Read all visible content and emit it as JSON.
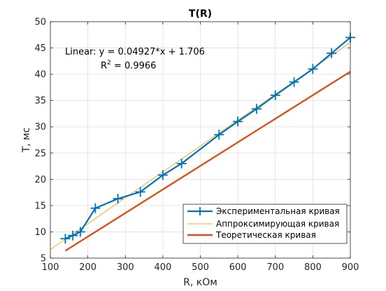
{
  "chart_data": {
    "type": "line",
    "title": "T(R)",
    "xlabel": "R, кОм",
    "ylabel": "T, мс",
    "xlim": [
      100,
      900
    ],
    "ylim": [
      5,
      50
    ],
    "xticks": [
      100,
      200,
      300,
      400,
      500,
      600,
      700,
      800,
      900
    ],
    "yticks": [
      5,
      10,
      15,
      20,
      25,
      30,
      35,
      40,
      45,
      50
    ],
    "grid": true,
    "legend_position": "bottom-right",
    "annotation": {
      "line1": "Linear:  y = 0.04927*x + 1.706",
      "r2_prefix": "R",
      "r2_exponent": "2",
      "r2_value": " = 0.9966"
    },
    "series": [
      {
        "name": "Экспериментальная кривая",
        "color": "#0072BD",
        "marker": "plus",
        "x": [
          140,
          160,
          180,
          220,
          280,
          340,
          400,
          450,
          550,
          600,
          650,
          700,
          750,
          800,
          850,
          900
        ],
        "y": [
          8.7,
          9.3,
          10.0,
          14.5,
          16.3,
          17.6,
          20.8,
          23.0,
          28.5,
          31.0,
          33.4,
          36.0,
          38.5,
          41.0,
          44.0,
          47.0
        ]
      },
      {
        "name": "Аппроксимирующая кривая",
        "color": "#EDB120",
        "marker": "none",
        "x": [
          100,
          900
        ],
        "y": [
          6.633,
          46.049
        ]
      },
      {
        "name": "Теоретическая кривая",
        "color": "#D95319",
        "marker": "none",
        "x": [
          140,
          900
        ],
        "y": [
          6.4,
          40.5
        ]
      }
    ]
  }
}
